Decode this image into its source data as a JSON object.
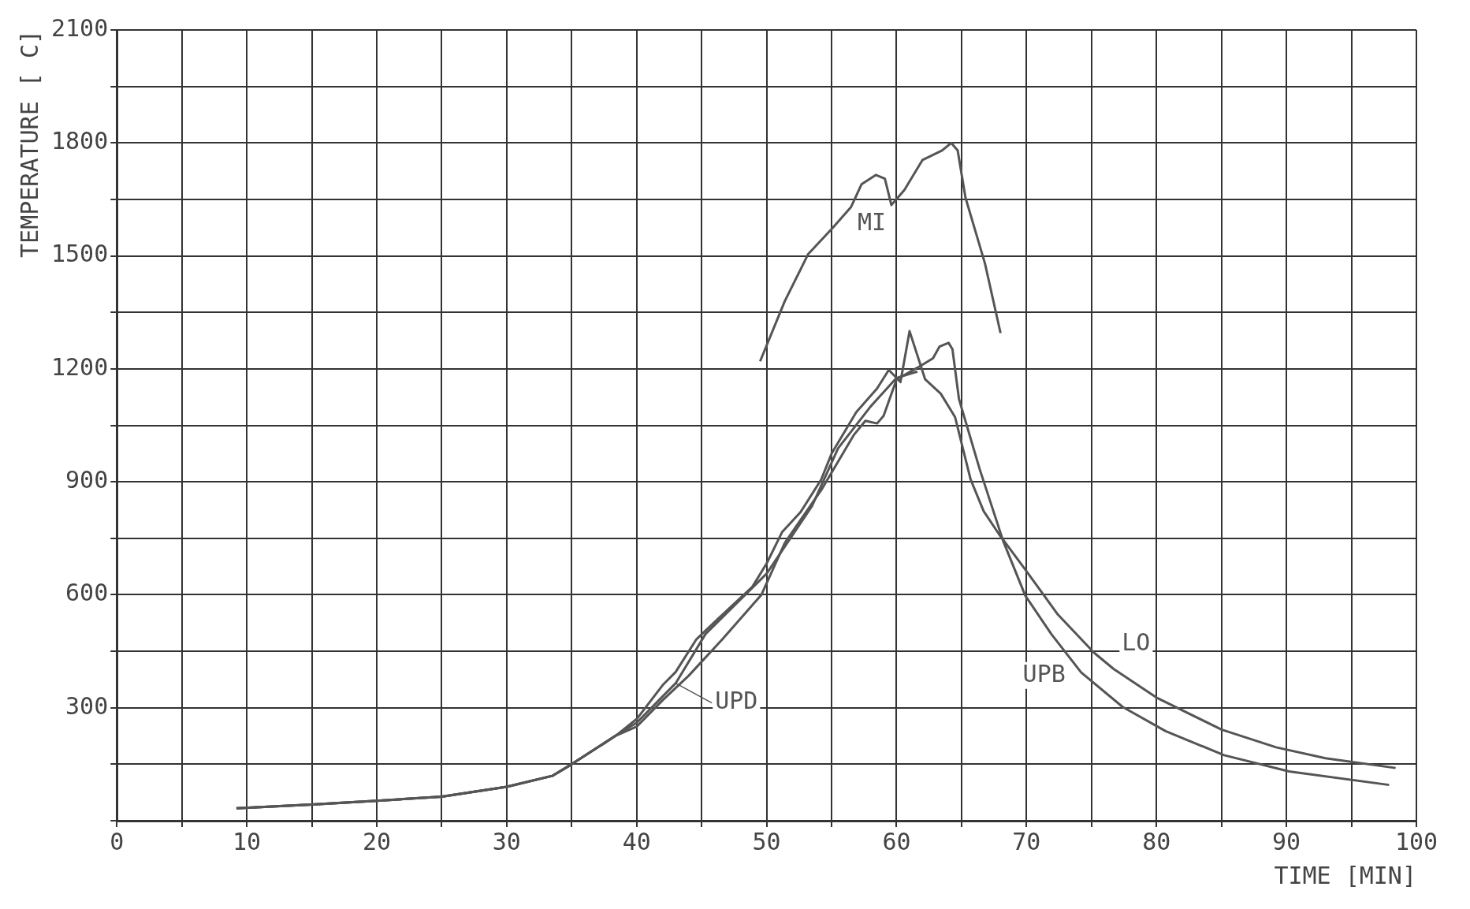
{
  "chart_data": {
    "type": "line",
    "xlabel": "TIME [MIN]",
    "ylabel": "TEMPERATURE [ C]",
    "xlim": [
      0,
      100
    ],
    "ylim": [
      0,
      2100
    ],
    "xticks": [
      0,
      {
        "value": 5,
        "label": null
      },
      10,
      {
        "value": 15,
        "label": null
      },
      20,
      {
        "value": 25,
        "label": null
      },
      30,
      {
        "value": 35,
        "label": null
      },
      40,
      {
        "value": 45,
        "label": null
      },
      50,
      {
        "value": 55,
        "label": null
      },
      60,
      {
        "value": 65,
        "label": null
      },
      70,
      {
        "value": 75,
        "label": null
      },
      80,
      {
        "value": 85,
        "label": null
      },
      90,
      {
        "value": 95,
        "label": null
      },
      100
    ],
    "yticks": [
      {
        "value": 0,
        "label": null
      },
      {
        "value": 150,
        "label": null
      },
      300,
      {
        "value": 450,
        "label": null
      },
      600,
      {
        "value": 750,
        "label": null
      },
      900,
      {
        "value": 1050,
        "label": null
      },
      1200,
      {
        "value": 1350,
        "label": null
      },
      1500,
      {
        "value": 1650,
        "label": null
      },
      1800,
      {
        "value": 1950,
        "label": null
      },
      2100
    ],
    "grid": true,
    "marker": "none",
    "line_style": "solid",
    "series": [
      {
        "name": "MI",
        "color": "#555555",
        "x": [
          49.5,
          51.4,
          53.2,
          55.1,
          56.5,
          57.3,
          58.4,
          59.1,
          59.6,
          60.6,
          62.0,
          63.5,
          64.2,
          64.7,
          65.3,
          66.8,
          68.0
        ],
        "values": [
          1220,
          1380,
          1505,
          1575,
          1630,
          1690,
          1715,
          1705,
          1635,
          1675,
          1755,
          1780,
          1800,
          1780,
          1655,
          1480,
          1295
        ]
      },
      {
        "name": "UPD",
        "color": "#555555",
        "x": [
          9.2,
          15,
          20,
          25,
          30,
          33.5,
          35,
          38.4,
          40,
          43,
          45.3,
          50,
          53.5,
          55.5,
          58,
          60,
          61.6
        ],
        "values": [
          33,
          43,
          53,
          64,
          90,
          119,
          150,
          226,
          260,
          365,
          496,
          656,
          836,
          989,
          1100,
          1176,
          1193
        ]
      },
      {
        "name": "UPB",
        "color": "#555555",
        "x": [
          9.2,
          15,
          20,
          25,
          30,
          33.5,
          35,
          38.4,
          40,
          42,
          44,
          46.6,
          49.6,
          51.4,
          54.2,
          56.7,
          57.6,
          58.5,
          59,
          60,
          61.6,
          62.8,
          63.3,
          64,
          64.3,
          64.8,
          66.4,
          68.2,
          69.9,
          71.9,
          74.2,
          77.4,
          80.7,
          85.2,
          90.2,
          97.9
        ],
        "values": [
          33,
          43,
          53,
          64,
          90,
          119,
          150,
          226,
          250,
          320,
          385,
          482,
          600,
          738,
          878,
          1024,
          1062,
          1055,
          1075,
          1172,
          1203,
          1228,
          1259,
          1269,
          1252,
          1120,
          933,
          743,
          598,
          496,
          394,
          302,
          238,
          174,
          131,
          95
        ]
      },
      {
        "name": "LO",
        "color": "#555555",
        "x": [
          9.2,
          15,
          20,
          25,
          30,
          33.5,
          35,
          38.4,
          40,
          42,
          43,
          44.6,
          46.1,
          48.9,
          50,
          51.2,
          52.6,
          54.2,
          55,
          56.9,
          58.5,
          59.4,
          60.3,
          61,
          62.2,
          63.4,
          64.5,
          65.7,
          66.7,
          67.9,
          69.9,
          72.4,
          75.2,
          76.7,
          80,
          85,
          89.2,
          93,
          98.4
        ],
        "values": [
          33,
          43,
          53,
          64,
          90,
          119,
          150,
          226,
          270,
          360,
          395,
          482,
          531,
          621,
          683,
          767,
          819,
          906,
          975,
          1085,
          1148,
          1197,
          1165,
          1300,
          1172,
          1134,
          1072,
          906,
          822,
          760,
          667,
          548,
          446,
          403,
          327,
          242,
          195,
          166,
          140
        ]
      }
    ]
  }
}
